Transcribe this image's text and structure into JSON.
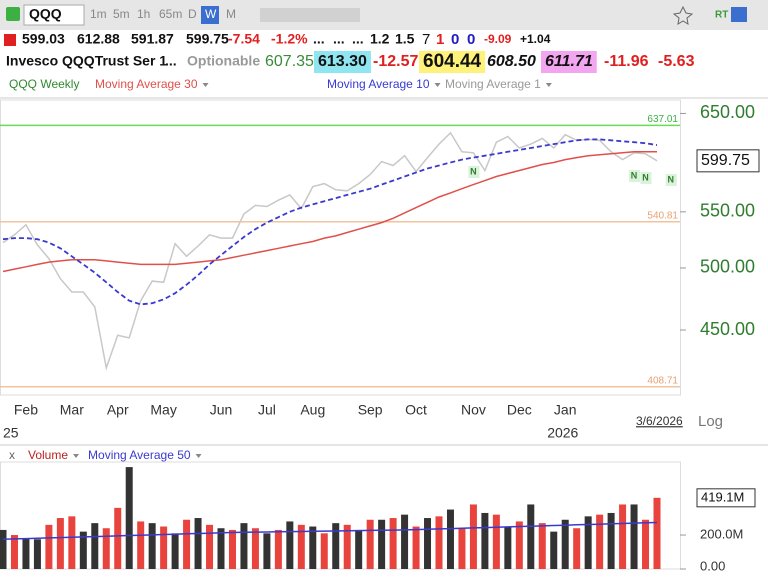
{
  "toolbar": {
    "symbol": "QQQ",
    "intervals": [
      "1m",
      "5m",
      "1h",
      "65m",
      "D",
      "W",
      "M"
    ],
    "rt": "RT"
  },
  "quote": {
    "open": "599.03",
    "high": "612.88",
    "low": "591.87",
    "close": "599.75",
    "change": "-7.54",
    "change_pct": "-1.2%",
    "dots": [
      "...",
      "...",
      "..."
    ],
    "stats": [
      "1.2",
      "1.5"
    ],
    "counts": [
      "7",
      "1",
      "0",
      "0"
    ],
    "extra": [
      "-9.09",
      "+1.04"
    ]
  },
  "info": {
    "name": "Invesco QQQTrust Ser 1",
    "more": "...",
    "optionable": "Optionable",
    "values": [
      "607.35",
      "613.30",
      "-12.57",
      "604.44",
      "608.50",
      "611.71",
      "-11.96",
      "-5.63"
    ]
  },
  "footer": {
    "scale": "Log"
  },
  "chart_data": [
    {
      "type": "line",
      "title": "QQQ Weekly",
      "log": true,
      "categories": [
        null,
        null,
        "Feb",
        null,
        null,
        null,
        "Mar",
        null,
        null,
        null,
        "Apr",
        null,
        null,
        null,
        "May",
        null,
        null,
        null,
        null,
        "Jun",
        null,
        null,
        null,
        "Jul",
        null,
        null,
        null,
        "Aug",
        null,
        null,
        null,
        null,
        "Sep",
        null,
        null,
        null,
        "Oct",
        null,
        null,
        null,
        null,
        "Nov",
        null,
        null,
        null,
        "Dec",
        null,
        null,
        null,
        "Jan",
        null,
        null,
        null,
        null,
        null,
        null,
        null,
        null
      ],
      "year_labels": [
        "25",
        "2026"
      ],
      "date_label": "3/6/2026",
      "ylim": [
        403,
        665
      ],
      "yticks": [
        {
          "value": 450,
          "label": "450.00"
        },
        {
          "value": 500,
          "label": "500.00"
        },
        {
          "value": 550,
          "label": "550.00"
        },
        {
          "value": 650,
          "label": "650.00"
        }
      ],
      "hlines": [
        {
          "value": 637.01,
          "color": "#66dd55"
        },
        {
          "value": 540.81,
          "color": "#f2c49c"
        },
        {
          "value": 408.71,
          "color": "#f2c49c"
        }
      ],
      "signal_label": "N",
      "series": [
        {
          "name": "Moving Average 30",
          "color": "#e0504a",
          "values": [
            497,
            499,
            501,
            503,
            505,
            506,
            507,
            507,
            507,
            506,
            505,
            504,
            503,
            503,
            503,
            503,
            504,
            505,
            506,
            507,
            509,
            511,
            513,
            515,
            517,
            519,
            521,
            523,
            526,
            528,
            531,
            534,
            537,
            540,
            544,
            549,
            554,
            559,
            564,
            568,
            572,
            576,
            580,
            584,
            587,
            590,
            593,
            596,
            598,
            601,
            603,
            605,
            606,
            607,
            608,
            609,
            609,
            609
          ]
        },
        {
          "name": "Moving Average 10",
          "color": "#3a3ad0",
          "dash": true,
          "values": [
            525,
            526,
            526,
            525,
            522,
            517,
            510,
            503,
            496,
            488,
            480,
            473,
            470,
            471,
            474,
            479,
            486,
            494,
            503,
            511,
            519,
            527,
            534,
            540,
            545,
            550,
            554,
            557,
            560,
            563,
            566,
            569,
            572,
            576,
            580,
            584,
            588,
            592,
            595,
            598,
            601,
            603,
            605,
            607,
            609,
            611,
            613,
            615,
            617,
            619,
            621,
            622,
            622,
            621,
            620,
            619,
            618,
            616
          ]
        },
        {
          "name": "Moving Average 1",
          "color": "#c8c8c8",
          "values": [
            522,
            529,
            538,
            520,
            508,
            491,
            480,
            480,
            468,
            422,
            446,
            444,
            473,
            489,
            488,
            521,
            510,
            519,
            529,
            526,
            526,
            548,
            556,
            555,
            561,
            566,
            553,
            574,
            577,
            571,
            570,
            577,
            586,
            599,
            595,
            605,
            589,
            603,
            617,
            629,
            609,
            608,
            590,
            619,
            625,
            613,
            617,
            623,
            613,
            627,
            621,
            622,
            621,
            609,
            601,
            608,
            607,
            599.75
          ]
        }
      ]
    },
    {
      "type": "bar",
      "legend_prefix": "x",
      "ylim": [
        0,
        630
      ],
      "yticks": [
        {
          "value": 0,
          "label": "0.00"
        },
        {
          "value": 200,
          "label": "200.0M"
        }
      ],
      "series": [
        {
          "name": "Volume",
          "colors": [
            "#333333",
            "#e8433c",
            "#333333",
            "#333333",
            "#e8433c",
            "#e8433c",
            "#e8433c",
            "#333333",
            "#333333",
            "#e8433c",
            "#e8433c",
            "#333333",
            "#e8433c",
            "#333333",
            "#e8433c",
            "#333333",
            "#e8433c",
            "#333333",
            "#e8433c",
            "#333333",
            "#e8433c",
            "#333333",
            "#e8433c",
            "#333333",
            "#e8433c",
            "#333333",
            "#e8433c",
            "#333333",
            "#e8433c",
            "#333333",
            "#e8433c",
            "#333333",
            "#e8433c",
            "#333333",
            "#e8433c",
            "#333333",
            "#e8433c",
            "#333333",
            "#e8433c",
            "#333333",
            "#e8433c",
            "#e8433c",
            "#333333",
            "#e8433c",
            "#333333",
            "#e8433c",
            "#333333",
            "#e8433c",
            "#333333",
            "#333333",
            "#e8433c",
            "#333333",
            "#e8433c",
            "#333333",
            "#e8433c",
            "#333333",
            "#e8433c",
            "#e8433c"
          ],
          "values": [
            230,
            200,
            180,
            175,
            260,
            300,
            310,
            220,
            270,
            240,
            360,
            600,
            280,
            270,
            250,
            210,
            290,
            300,
            260,
            240,
            230,
            270,
            240,
            210,
            230,
            280,
            260,
            250,
            210,
            270,
            260,
            230,
            290,
            290,
            300,
            320,
            250,
            300,
            310,
            350,
            240,
            380,
            330,
            320,
            250,
            280,
            380,
            270,
            220,
            290,
            240,
            310,
            320,
            330,
            380,
            380,
            290,
            419.1
          ],
          "value_labels": [
            null,
            null,
            null,
            null,
            null,
            null,
            null,
            null,
            null,
            null,
            null,
            null,
            null,
            null,
            null,
            null,
            null,
            null,
            null,
            null,
            null,
            null,
            null,
            null,
            null,
            null,
            null,
            null,
            null,
            null,
            null,
            null,
            null,
            null,
            null,
            null,
            null,
            null,
            null,
            null,
            null,
            null,
            null,
            null,
            null,
            null,
            null,
            null,
            null,
            null,
            null,
            null,
            null,
            null,
            null,
            null,
            null,
            "419.1M"
          ]
        },
        {
          "name": "Moving Average 50",
          "color": "#3a3ad0",
          "type": "line",
          "values": [
            175,
            177,
            179,
            181,
            183,
            185,
            187,
            189,
            191,
            193,
            195,
            197,
            199,
            201,
            203,
            205,
            207,
            209,
            211,
            213,
            215,
            216,
            217,
            218,
            219,
            220,
            221,
            222,
            223,
            224,
            225,
            226,
            227,
            228,
            229,
            230,
            232,
            234,
            236,
            238,
            240,
            242,
            244,
            246,
            248,
            250,
            252,
            254,
            256,
            258,
            260,
            262,
            264,
            266,
            268,
            270,
            272,
            274
          ]
        }
      ]
    }
  ]
}
